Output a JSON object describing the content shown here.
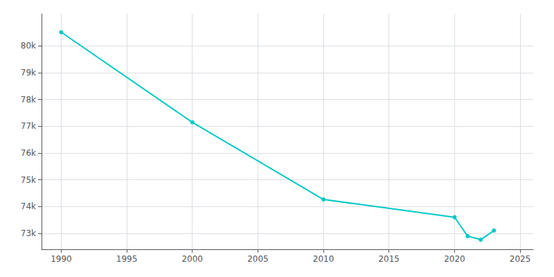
{
  "chart_data": {
    "type": "line",
    "x": [
      1990,
      2000,
      2010,
      2020,
      2021,
      2022,
      2023
    ],
    "values": [
      80514,
      77145,
      74262,
      73598,
      72890,
      72760,
      73100
    ],
    "color": "#00C8C8",
    "marker": "circle",
    "xlim": [
      1988.5,
      2026
    ],
    "ylim": [
      72400,
      81200
    ],
    "xticks": [
      1990,
      1995,
      2000,
      2005,
      2010,
      2015,
      2020,
      2025
    ],
    "yticks": [
      {
        "value": 73000,
        "label": "73k"
      },
      {
        "value": 74000,
        "label": "74k"
      },
      {
        "value": 75000,
        "label": "75k"
      },
      {
        "value": 76000,
        "label": "76k"
      },
      {
        "value": 77000,
        "label": "77k"
      },
      {
        "value": 78000,
        "label": "78k"
      },
      {
        "value": 79000,
        "label": "79k"
      },
      {
        "value": 80000,
        "label": "80k"
      }
    ],
    "grid": true
  }
}
